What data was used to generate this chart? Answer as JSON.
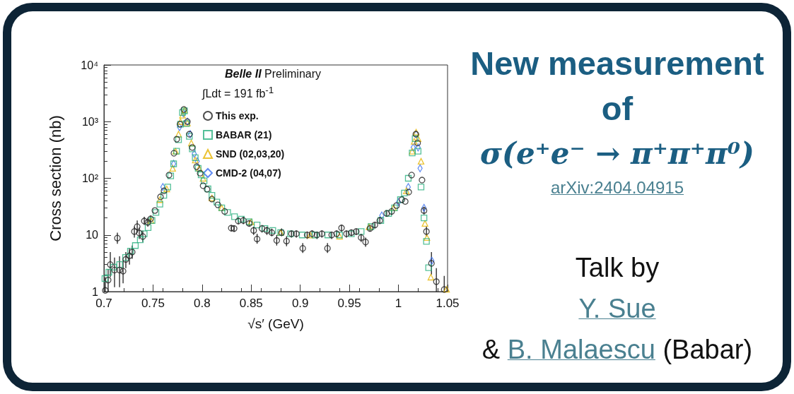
{
  "chart_data": {
    "type": "scatter",
    "title": "New measurement of",
    "subtitle": "σ(e⁺e⁻ → π⁺π⁺π⁰)",
    "xlabel": "√s′ (GeV)",
    "ylabel": "Cross section (nb)",
    "annotations": [
      "Belle II",
      "Preliminary",
      "∫Ldt = 191 fb$^{-1}$",
      "arXiv:2404.04915",
      "Talk by",
      "Y. Sue",
      "&",
      "B. Malaescu",
      "(Babar)"
    ],
    "xlim": [
      0.7,
      1.05
    ],
    "xticks": [
      0.7,
      0.75,
      0.8,
      0.85,
      0.9,
      0.95,
      1,
      1.05
    ],
    "ylim": [
      1,
      10000
    ],
    "yticks": [
      1,
      10,
      {
        "value": 100,
        "label": "10²"
      },
      {
        "value": 1000,
        "label": "10³"
      },
      {
        "value": 10000,
        "label": "10⁴"
      }
    ],
    "log": true,
    "legend": "top",
    "series": [
      {
        "name": "This exp.",
        "color": "#222222",
        "marker": "circle",
        "x": [
          0.7014,
          0.7043,
          0.7065,
          0.7108,
          0.7137,
          0.7159,
          0.7195,
          0.7223,
          0.726,
          0.7288,
          0.731,
          0.7339,
          0.736,
          0.7396,
          0.7411,
          0.7447,
          0.7476,
          0.7519,
          0.7576,
          0.7612,
          0.7663,
          0.7713,
          0.7742,
          0.7775,
          0.7814,
          0.785,
          0.787,
          0.79,
          0.7944,
          0.798,
          0.801,
          0.805,
          0.81,
          0.816,
          0.823,
          0.8297,
          0.8326,
          0.8369,
          0.842,
          0.848,
          0.8525,
          0.856,
          0.861,
          0.866,
          0.871,
          0.876,
          0.881,
          0.886,
          0.891,
          0.896,
          0.9025,
          0.907,
          0.912,
          0.917,
          0.922,
          0.9277,
          0.932,
          0.937,
          0.942,
          0.947,
          0.952,
          0.957,
          0.962,
          0.9665,
          0.971,
          0.976,
          0.981,
          0.988,
          0.993,
          0.998,
          1.0035,
          1.0069,
          1.0105,
          1.0134,
          1.0177,
          1.0195,
          1.024,
          1.026,
          1.0285,
          1.0336,
          1.0386,
          1.0466
        ],
        "values": [
          1.05,
          1.6,
          3,
          2.4,
          8.8,
          2.4,
          2.3,
          3.7,
          4.3,
          5,
          11.5,
          14,
          10.8,
          9.4,
          17.6,
          16.7,
          19.2,
          27,
          47,
          60,
          114,
          277,
          490,
          900,
          1640,
          1000,
          600,
          350,
          160,
          123,
          74,
          64,
          43,
          34,
          26,
          13.2,
          13,
          17.6,
          18,
          16,
          12,
          8.5,
          13,
          12,
          11,
          8,
          11,
          7.8,
          10.5,
          10.5,
          5.8,
          10,
          10.5,
          10,
          10.5,
          5.8,
          10,
          10.5,
          13.3,
          10.5,
          11,
          11.5,
          9,
          7.5,
          13,
          15,
          18,
          24,
          26,
          33,
          42,
          39,
          57,
          114,
          600,
          420,
          93,
          27,
          11.5,
          3.15,
          1.5,
          1.09
        ],
        "errors": [
          [
            1,
            1.8
          ],
          [
            1,
            2.5
          ],
          [
            1.8,
            5
          ],
          [
            1.2,
            4
          ],
          [
            7,
            11
          ],
          [
            1.2,
            4.2
          ],
          [
            1.4,
            3.5
          ],
          [
            2.6,
            5
          ],
          [
            3,
            5.8
          ],
          [
            3.8,
            6.5
          ],
          [
            9,
            14
          ],
          [
            11,
            18
          ],
          [
            8.5,
            13.5
          ],
          [
            7.5,
            12
          ],
          [
            15,
            21
          ],
          [
            14,
            20
          ],
          [
            17,
            22
          ],
          null,
          null,
          null,
          null,
          null,
          null,
          null,
          null,
          null,
          null,
          null,
          null,
          null,
          null,
          null,
          null,
          null,
          null,
          [
            11.5,
            15
          ],
          [
            11.3,
            14.8
          ],
          [
            15.5,
            20
          ],
          [
            15.5,
            21
          ],
          [
            14,
            18
          ],
          [
            10,
            14
          ],
          [
            7,
            10.5
          ],
          [
            11,
            15
          ],
          [
            10,
            14
          ],
          [
            9.5,
            13
          ],
          [
            6.5,
            10
          ],
          [
            9.5,
            13
          ],
          [
            6.3,
            9.5
          ],
          [
            9,
            12
          ],
          [
            9,
            12
          ],
          [
            4.8,
            7.2
          ],
          [
            8.5,
            11.5
          ],
          [
            9,
            12
          ],
          [
            8.5,
            11.5
          ],
          [
            9,
            12
          ],
          [
            4.8,
            7.2
          ],
          [
            8.5,
            11.5
          ],
          [
            9,
            12
          ],
          [
            11.5,
            15
          ],
          [
            9,
            12
          ],
          [
            9.5,
            12.5
          ],
          [
            10,
            13
          ],
          [
            7.5,
            10.5
          ],
          [
            6.2,
            9
          ],
          [
            11.5,
            15
          ],
          [
            13,
            17
          ],
          [
            15.5,
            21
          ],
          [
            21,
            27
          ],
          [
            22.5,
            30
          ],
          null,
          null,
          null,
          null,
          null,
          null,
          null,
          null,
          [
            23,
            31.5
          ],
          [
            9.5,
            14
          ],
          [
            2,
            5
          ],
          [
            1,
            2.6
          ],
          [
            1,
            1.9
          ]
        ]
      },
      {
        "name": "BABAR (21)",
        "color": "#2bb07f",
        "marker": "square",
        "x": [
          0.701,
          0.705,
          0.71,
          0.716,
          0.722,
          0.727,
          0.732,
          0.737,
          0.741,
          0.745,
          0.749,
          0.753,
          0.757,
          0.761,
          0.765,
          0.768,
          0.771,
          0.774,
          0.776,
          0.778,
          0.78,
          0.782,
          0.784,
          0.787,
          0.79,
          0.793,
          0.796,
          0.799,
          0.802,
          0.806,
          0.81,
          0.815,
          0.82,
          0.826,
          0.833,
          0.84,
          0.848,
          0.856,
          0.864,
          0.872,
          0.88,
          0.89,
          0.902,
          0.915,
          0.928,
          0.94,
          0.952,
          0.962,
          0.972,
          0.982,
          0.99,
          0.996,
          1.002,
          1.006,
          1.01,
          1.014,
          1.017,
          1.02,
          1.023,
          1.026,
          1.0285,
          1.0307
        ],
        "values": [
          1.7,
          2.2,
          2.7,
          3,
          4,
          5.2,
          6.5,
          8.2,
          10.5,
          13.5,
          18,
          25,
          35,
          50,
          70,
          110,
          180,
          300,
          480,
          900,
          1450,
          1550,
          920,
          550,
          330,
          230,
          150,
          115,
          90,
          65,
          50,
          38,
          30,
          25,
          21,
          19,
          17,
          15,
          13,
          12,
          11,
          10.5,
          10,
          10,
          10,
          10,
          10.5,
          11.5,
          14,
          18,
          24,
          30,
          42,
          55,
          100,
          280,
          500,
          300,
          70,
          20,
          7.7,
          2.65
        ]
      },
      {
        "name": "SND (02,03,20)",
        "color": "#e6b400",
        "marker": "triangle",
        "x": [
          0.748,
          0.757,
          0.764,
          0.77,
          0.773,
          0.776,
          0.778,
          0.78,
          0.782,
          0.785,
          0.789,
          0.793,
          0.797,
          0.801,
          0.81,
          0.82,
          0.85,
          0.88,
          0.91,
          0.94,
          0.97,
          0.995,
          1.008,
          1.014,
          1.016,
          1.018,
          1.02,
          1.023,
          1.027,
          1.029,
          1.033,
          1.049
        ],
        "values": [
          18,
          42,
          65,
          150,
          300,
          600,
          1000,
          1300,
          1600,
          950,
          420,
          210,
          150,
          100,
          45,
          30,
          17,
          11,
          10,
          9.5,
          14,
          30,
          60,
          300,
          450,
          650,
          500,
          200,
          16,
          9,
          1.8,
          1.1
        ]
      },
      {
        "name": "CMD-2 (04,07)",
        "color": "#3a6ff0",
        "marker": "diamond",
        "x": [
          0.76,
          0.771,
          0.777,
          0.781,
          0.783,
          0.785,
          0.788,
          0.792,
          0.795,
          0.983,
          1,
          1.01,
          1.015,
          1.018,
          1.02,
          1.022,
          1.026,
          1.034
        ],
        "values": [
          70,
          180,
          800,
          1400,
          null,
          1000,
          600,
          270,
          200,
          22,
          38,
          70,
          350,
          600,
          350,
          150,
          30,
          3.5
        ]
      }
    ]
  }
}
